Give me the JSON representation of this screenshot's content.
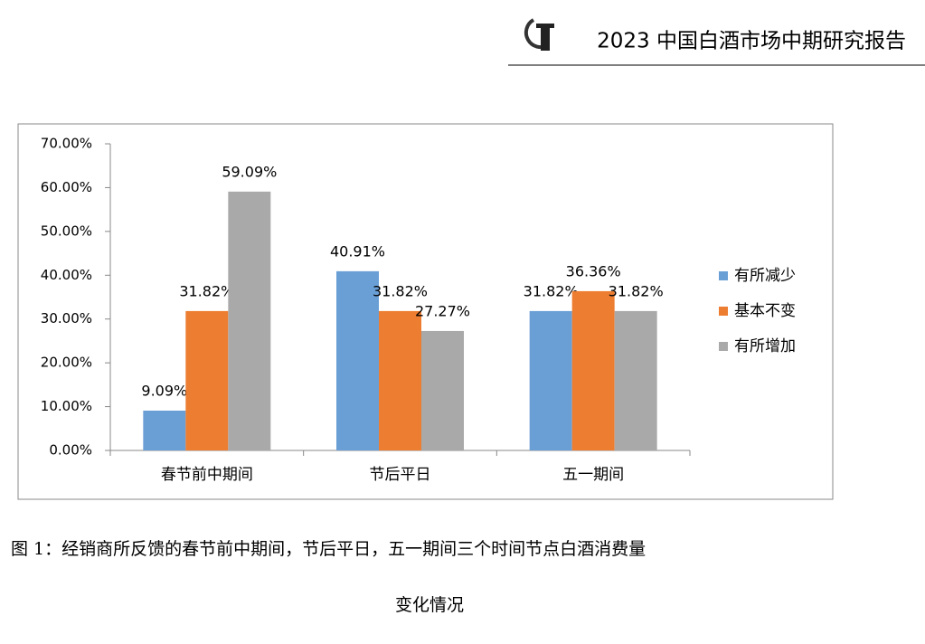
{
  "header": {
    "title": "2023 中国白酒市场中期研究报告"
  },
  "chart_data": {
    "type": "bar",
    "categories": [
      "春节前中期间",
      "节后平日",
      "五一期间"
    ],
    "series": [
      {
        "name": "有所减少",
        "color": "#6a9fd6",
        "values": [
          9.09,
          40.91,
          31.82
        ],
        "value_labels": [
          "9.09%",
          "40.91%",
          "31.82%"
        ]
      },
      {
        "name": "基本不变",
        "color": "#ed7d31",
        "values": [
          31.82,
          31.82,
          36.36
        ],
        "value_labels": [
          "31.82%",
          "31.82%",
          "36.36%"
        ]
      },
      {
        "name": "有所增加",
        "color": "#a9a9a9",
        "values": [
          59.09,
          27.27,
          31.82
        ],
        "value_labels": [
          "59.09%",
          "27.27%",
          "31.82%"
        ]
      }
    ],
    "ylim": [
      0,
      70
    ],
    "yticks": [
      {
        "value": 0,
        "label": "0.00%"
      },
      {
        "value": 10,
        "label": "10.00%"
      },
      {
        "value": 20,
        "label": "20.00%"
      },
      {
        "value": 30,
        "label": "30.00%"
      },
      {
        "value": 40,
        "label": "40.00%"
      },
      {
        "value": 50,
        "label": "50.00%"
      },
      {
        "value": 60,
        "label": "60.00%"
      },
      {
        "value": 70,
        "label": "70.00%"
      }
    ],
    "legend": "right"
  },
  "caption": {
    "line1": "图 1：经销商所反馈的春节前中期间，节后平日，五一期间三个时间节点白酒消费量",
    "line2": "变化情况"
  }
}
